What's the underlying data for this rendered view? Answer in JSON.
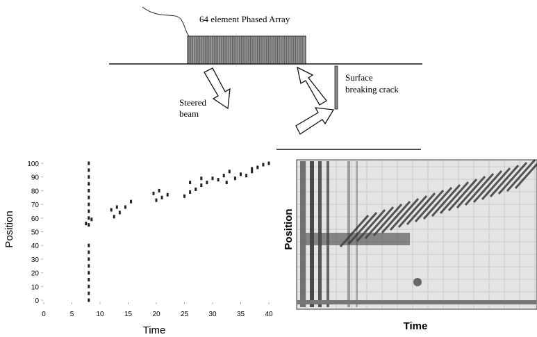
{
  "diagram": {
    "array_label": "64 element Phased Array",
    "beam_label": [
      "Steered",
      "beam"
    ],
    "crack_label": [
      "Surface",
      "breaking crack"
    ]
  },
  "chart_data": {
    "type": "scatter",
    "x_label": "Time",
    "y_label": "Position",
    "color": "#222",
    "xlim": [
      0,
      40
    ],
    "ylim": [
      0,
      100
    ],
    "xticks": [
      0,
      5,
      10,
      15,
      20,
      25,
      30,
      35,
      40
    ],
    "yticks": [
      0,
      10,
      20,
      30,
      40,
      50,
      60,
      70,
      80,
      90,
      100
    ],
    "x": [
      8,
      8,
      8,
      8,
      8,
      8,
      8,
      8,
      8,
      8,
      8,
      8,
      8,
      8,
      8,
      8,
      8,
      8,
      8,
      7.5,
      8.5,
      12.5,
      13.5,
      14.5,
      15.5,
      12,
      13,
      20,
      21,
      22,
      19.5,
      20.5,
      25,
      26,
      27,
      28,
      29,
      30,
      26,
      28,
      31,
      32,
      33,
      32.5,
      34,
      35,
      36,
      37,
      38,
      37,
      39,
      40
    ],
    "y": [
      0,
      5,
      10,
      15,
      20,
      25,
      30,
      35,
      40,
      55,
      60,
      65,
      70,
      75,
      80,
      85,
      90,
      95,
      100,
      56,
      59,
      61,
      64,
      68,
      72,
      66,
      68,
      73,
      75,
      77,
      78,
      80,
      76,
      79,
      81,
      84,
      86,
      89,
      86,
      89,
      88,
      91,
      94,
      86,
      89,
      92,
      91,
      94,
      97,
      96,
      99,
      100
    ]
  },
  "image_panel": {
    "x_label": "Time",
    "y_label": "Position"
  }
}
